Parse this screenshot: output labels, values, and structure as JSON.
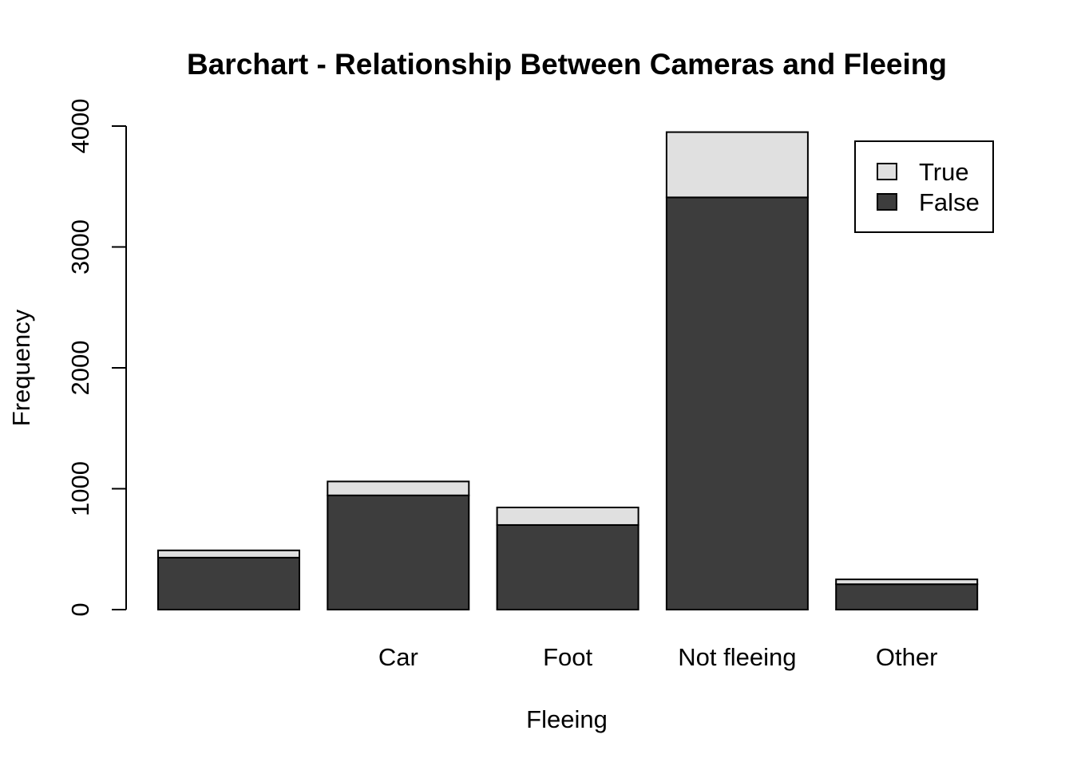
{
  "chart_data": {
    "type": "bar",
    "stacked": true,
    "title": "Barchart - Relationship Between Cameras and Fleeing",
    "xlabel": "Fleeing",
    "ylabel": "Frequency",
    "categories": [
      "",
      "Car",
      "Foot",
      "Not fleeing",
      "Other"
    ],
    "series": [
      {
        "name": "False",
        "values": [
          430,
          945,
          700,
          3410,
          210
        ],
        "color": "#3d3d3d"
      },
      {
        "name": "True",
        "values": [
          60,
          115,
          145,
          540,
          40
        ],
        "color": "#e0e0e0"
      }
    ],
    "ylim": [
      0,
      4000
    ],
    "yticks": [
      "0",
      "1000",
      "2000",
      "3000",
      "4000"
    ],
    "legend": {
      "position": "top-right",
      "order": [
        "True",
        "False"
      ]
    },
    "grid": false
  }
}
